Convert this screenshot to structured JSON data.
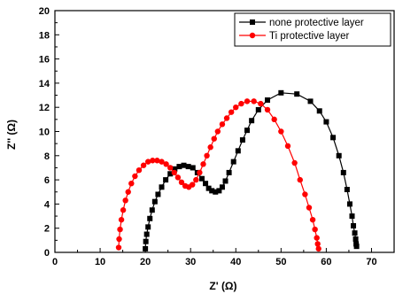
{
  "chart_data": {
    "type": "scatter",
    "xlabel": "Z' (Ω)",
    "ylabel": "Z'' (Ω)",
    "xlim": [
      0,
      75
    ],
    "ylim": [
      0,
      20
    ],
    "xticks": [
      0,
      10,
      20,
      30,
      40,
      50,
      60,
      70
    ],
    "yticks": [
      0,
      2,
      4,
      6,
      8,
      10,
      12,
      14,
      16,
      18,
      20
    ],
    "legend": "top-right",
    "series": [
      {
        "name": "none protective layer",
        "color": "#000000",
        "marker": "square",
        "x": [
          20.0,
          20.1,
          20.3,
          20.6,
          21.0,
          21.5,
          22.1,
          22.8,
          23.6,
          24.5,
          25.5,
          26.5,
          27.5,
          28.5,
          29.5,
          30.5,
          31.5,
          32.5,
          33.3,
          34.0,
          34.7,
          35.5,
          36.3,
          37.0,
          37.7,
          38.5,
          39.5,
          40.5,
          41.5,
          42.5,
          43.5,
          45.0,
          47.0,
          50.0,
          53.5,
          56.5,
          58.5,
          60.0,
          61.5,
          62.8,
          63.8,
          64.6,
          65.2,
          65.7,
          66.0,
          66.3,
          66.5,
          66.6,
          66.7
        ],
        "y": [
          0.3,
          0.9,
          1.5,
          2.1,
          2.8,
          3.5,
          4.2,
          4.8,
          5.4,
          6.0,
          6.5,
          6.9,
          7.1,
          7.2,
          7.1,
          7.0,
          6.6,
          6.1,
          5.7,
          5.3,
          5.1,
          5.0,
          5.1,
          5.4,
          5.9,
          6.6,
          7.5,
          8.4,
          9.3,
          10.1,
          10.9,
          11.8,
          12.6,
          13.2,
          13.1,
          12.5,
          11.7,
          10.8,
          9.5,
          8.0,
          6.6,
          5.2,
          4.0,
          3.0,
          2.2,
          1.6,
          1.1,
          0.7,
          0.5
        ]
      },
      {
        "name": "Ti protective layer",
        "color": "#ff0000",
        "marker": "circle",
        "x": [
          14.1,
          14.2,
          14.4,
          14.7,
          15.1,
          15.6,
          16.2,
          16.9,
          17.7,
          18.6,
          19.6,
          20.6,
          21.6,
          22.6,
          23.6,
          24.6,
          25.5,
          26.4,
          27.2,
          28.0,
          28.8,
          29.6,
          30.4,
          31.2,
          32.0,
          32.8,
          33.6,
          34.4,
          35.2,
          36.0,
          37.0,
          38.0,
          39.0,
          40.0,
          41.2,
          42.5,
          44.0,
          45.5,
          47.0,
          48.5,
          50.0,
          51.5,
          53.0,
          54.2,
          55.3,
          56.2,
          57.0,
          57.5,
          57.9,
          58.1,
          58.3
        ],
        "y": [
          0.4,
          1.1,
          1.9,
          2.7,
          3.5,
          4.3,
          5.0,
          5.7,
          6.3,
          6.8,
          7.2,
          7.5,
          7.6,
          7.6,
          7.5,
          7.3,
          7.0,
          6.6,
          6.2,
          5.8,
          5.5,
          5.4,
          5.6,
          6.0,
          6.6,
          7.3,
          8.0,
          8.7,
          9.4,
          10.0,
          10.6,
          11.1,
          11.6,
          12.0,
          12.3,
          12.5,
          12.5,
          12.3,
          11.8,
          11.0,
          10.0,
          8.8,
          7.4,
          6.0,
          4.8,
          3.7,
          2.7,
          1.9,
          1.2,
          0.7,
          0.3
        ]
      }
    ]
  }
}
